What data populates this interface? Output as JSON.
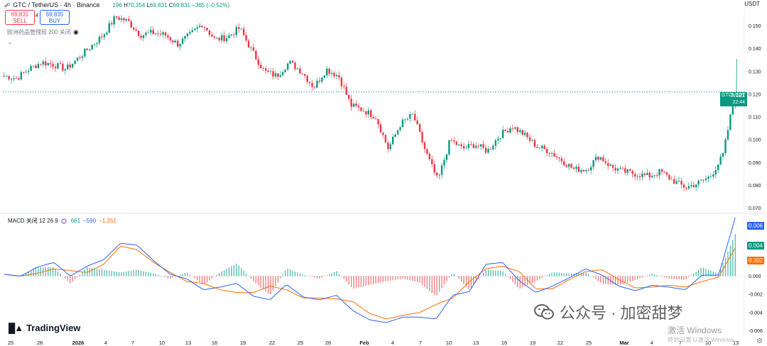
{
  "header": {
    "symbol": "GTC / TetherUS · 4h · Binance",
    "ohlc_label_h": "H",
    "ohlc_h": "70,354",
    "ohlc_label_l": "L",
    "ohlc_l": "69,831",
    "ohlc_label_c": "C",
    "ohlc_c": "69,831",
    "change": "−365 (−0.52%)",
    "open_fragment": "196",
    "currency": "USDT"
  },
  "trade": {
    "sell_price": "69,831",
    "sell_label": "SELL",
    "spread": "4",
    "buy_price": "69,835",
    "buy_label": "BUY"
  },
  "indicator_label": "欧洲药品管理局 200 关闭",
  "macd": {
    "label": "MACD 关闭 12 26 9",
    "hist_value": "661",
    "macd_value": "−590",
    "signal_value": "−1,251"
  },
  "price_badge": {
    "symbol": "GTCUSDT",
    "price": "0.121",
    "countdown": "22:44"
  },
  "macd_badges": [
    "0.006",
    "0.004",
    "0.002"
  ],
  "brand": "TradingView",
  "watermark": {
    "text": "公众号 · 加密甜梦",
    "activation_title": "激活 Windows",
    "activation_sub": "转到'设置'以激活 Windows。"
  },
  "colors": {
    "up": "#089981",
    "down": "#f23645",
    "macd_line": "#2962ff",
    "signal_line": "#ff6d00"
  },
  "chart_data": [
    {
      "type": "candlestick",
      "title": "GTC / TetherUS · 4h · Binance",
      "ylabel": "USDT",
      "ylim": [
        0.068,
        0.157
      ],
      "y_ticks": [
        "0.150",
        "0.140",
        "0.130",
        "0.120",
        "0.110",
        "0.100",
        "0.090",
        "0.080",
        "0.070"
      ],
      "y_tick_values": [
        0.15,
        0.14,
        0.13,
        0.12,
        0.11,
        0.1,
        0.09,
        0.08,
        0.07
      ],
      "x_ticks": [
        "25",
        "28",
        "2026",
        "4",
        "7",
        "10",
        "13",
        "16",
        "19",
        "22",
        "25",
        "28",
        "Feb",
        "4",
        "7",
        "10",
        "13",
        "16",
        "19",
        "22",
        "25",
        "Mar",
        "4",
        "7",
        "10",
        "13"
      ],
      "current_price": 0.121,
      "close_path": [
        0.128,
        0.127,
        0.131,
        0.134,
        0.133,
        0.131,
        0.136,
        0.141,
        0.146,
        0.154,
        0.152,
        0.146,
        0.147,
        0.146,
        0.142,
        0.146,
        0.151,
        0.144,
        0.145,
        0.149,
        0.139,
        0.13,
        0.128,
        0.134,
        0.13,
        0.123,
        0.131,
        0.128,
        0.115,
        0.113,
        0.11,
        0.096,
        0.107,
        0.111,
        0.095,
        0.082,
        0.1,
        0.096,
        0.098,
        0.095,
        0.102,
        0.106,
        0.102,
        0.097,
        0.095,
        0.091,
        0.087,
        0.087,
        0.093,
        0.088,
        0.086,
        0.085,
        0.084,
        0.086,
        0.082,
        0.079,
        0.081,
        0.084,
        0.093,
        0.121
      ]
    },
    {
      "type": "line",
      "title": "MACD 关闭 12 26 9",
      "ylim": [
        -0.0065,
        0.0068
      ],
      "y_ticks": [
        "0.000",
        "-0.002",
        "-0.004",
        "-0.006"
      ],
      "y_tick_values": [
        0.0,
        -0.002,
        -0.004,
        -0.006
      ],
      "series": [
        {
          "name": "MACD",
          "values": [
            0.0002,
            0.0,
            0.001,
            0.0015,
            0.0,
            0.0011,
            0.0018,
            0.0036,
            0.0034,
            0.0017,
            0.0002,
            -0.0003,
            -0.0015,
            -0.0012,
            -0.0008,
            -0.0022,
            -0.0026,
            -0.0009,
            -0.0023,
            -0.0026,
            -0.0021,
            -0.0038,
            -0.0048,
            -0.0051,
            -0.0045,
            -0.0045,
            -0.0047,
            -0.0021,
            -0.0017,
            0.0013,
            0.0015,
            -0.0005,
            -0.0018,
            -0.0011,
            -0.0002,
            0.0008,
            0.0001,
            -0.0011,
            -0.0016,
            -0.001,
            -0.0012,
            -0.0015,
            0.0001,
            0.0001,
            0.0064
          ]
        },
        {
          "name": "Signal",
          "values": [
            0.0002,
            0.0,
            0.0003,
            0.0008,
            0.0006,
            0.0004,
            0.0013,
            0.0033,
            0.0029,
            0.0015,
            0.0004,
            -0.0006,
            -0.0008,
            -0.0015,
            -0.0018,
            -0.0018,
            -0.0011,
            -0.0015,
            -0.0024,
            -0.0024,
            -0.0025,
            -0.0028,
            -0.0041,
            -0.0047,
            -0.0043,
            -0.004,
            -0.0031,
            -0.0024,
            -0.0006,
            0.0008,
            0.0011,
            0.0005,
            -0.0014,
            -0.0014,
            -0.0004,
            0.0005,
            0.0007,
            -0.0004,
            -0.0013,
            -0.0012,
            -0.001,
            -0.0012,
            -0.0006,
            -0.0001,
            0.0031
          ]
        }
      ]
    }
  ]
}
